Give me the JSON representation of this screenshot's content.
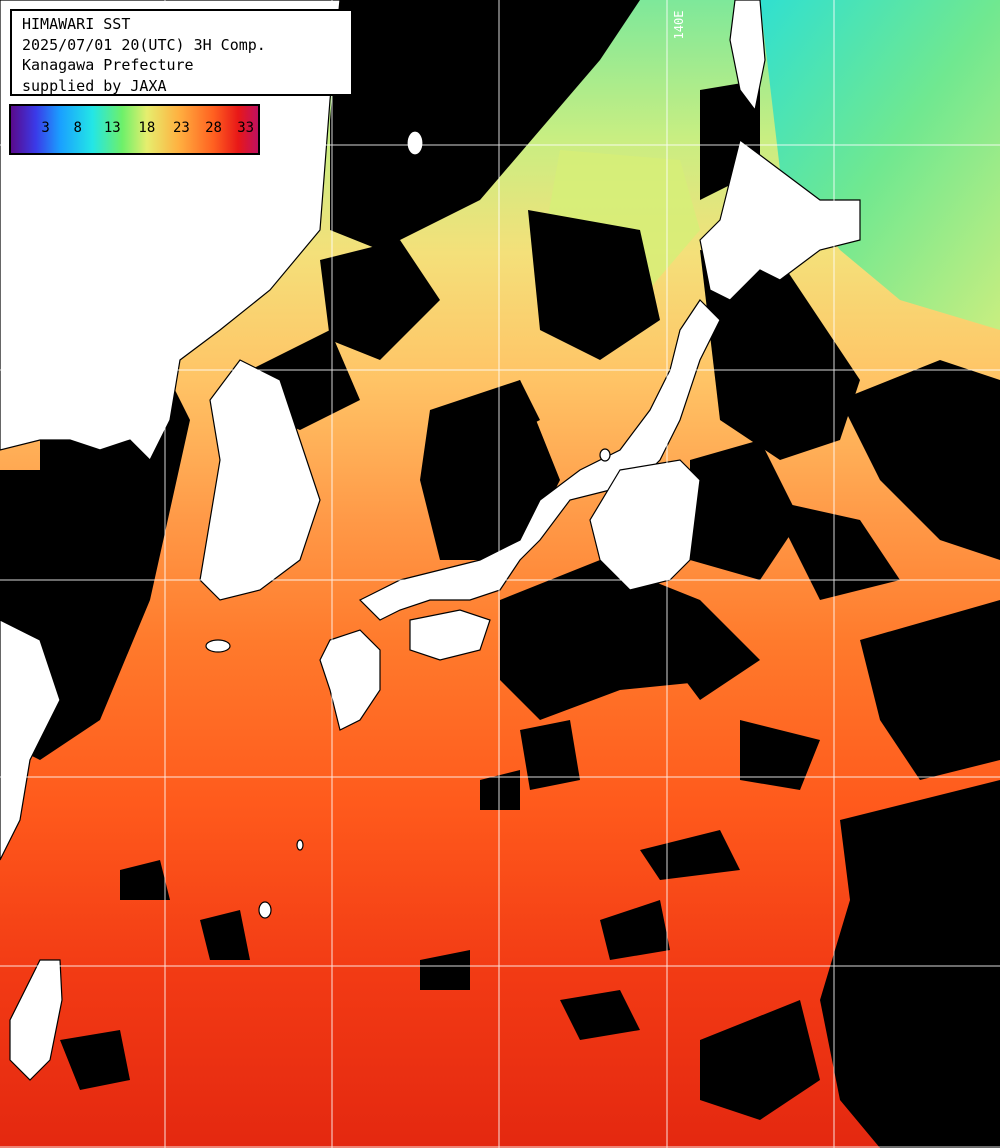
{
  "title": {
    "line1": "HIMAWARI SST",
    "line2": "2025/07/01 20(UTC) 3H Comp.",
    "line3": "Kanagawa Prefecture",
    "line4": "supplied by JAXA"
  },
  "colorbar": {
    "ticks": [
      "3",
      "8",
      "13",
      "18",
      "23",
      "28",
      "33"
    ],
    "colors": [
      "#5a0a8c",
      "#3a3ae8",
      "#1aa0ff",
      "#23e6e6",
      "#6df06a",
      "#e6ee6e",
      "#ffb040",
      "#ff6020",
      "#e81818",
      "#c01060"
    ]
  },
  "grid": {
    "longitude_label": "140E"
  },
  "colors": {
    "land": "#ffffff",
    "cloud_no_data": "#000000",
    "grid_lines": "#ffffff"
  }
}
